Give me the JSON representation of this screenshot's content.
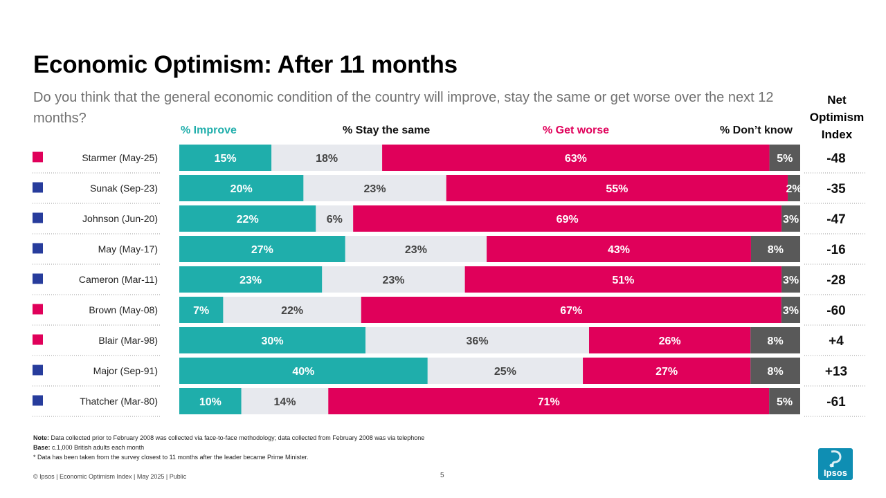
{
  "title": "Economic Optimism: After 11 months",
  "subtitle": "Do you think that the general economic condition of the country will improve, stay the same or get worse over the next 12 months?",
  "net_header": [
    "Net",
    "Optimism",
    "Index"
  ],
  "legend": {
    "improve": "% Improve",
    "same": "% Stay the same",
    "worse": "% Get worse",
    "dont_know": "% Don’t know"
  },
  "colors": {
    "improve": "#1FAEAB",
    "same": "#E7E9EE",
    "worse": "#E0005A",
    "dont_know": "#595959",
    "labour": "#E0005A",
    "conservative": "#273C9C"
  },
  "chart_data": {
    "type": "bar",
    "orientation": "horizontal",
    "stacked": true,
    "unit": "%",
    "categories": [
      "Starmer (May-25)",
      "Sunak (Sep-23)",
      "Johnson (Jun-20)",
      "May (May-17)",
      "Cameron (Mar-11)",
      "Brown (May-08)",
      "Blair (Mar-98)",
      "Major (Sep-91)",
      "Thatcher (Mar-80)"
    ],
    "party": [
      "labour",
      "conservative",
      "conservative",
      "conservative",
      "conservative",
      "labour",
      "labour",
      "conservative",
      "conservative"
    ],
    "series": [
      {
        "name": "% Improve",
        "key": "improve",
        "values": [
          15,
          20,
          22,
          27,
          23,
          7,
          30,
          40,
          10
        ]
      },
      {
        "name": "% Stay the same",
        "key": "same",
        "values": [
          18,
          23,
          6,
          23,
          23,
          22,
          36,
          25,
          14
        ]
      },
      {
        "name": "% Get worse",
        "key": "worse",
        "values": [
          63,
          55,
          69,
          43,
          51,
          67,
          26,
          27,
          71
        ]
      },
      {
        "name": "% Don’t know",
        "key": "dont_know",
        "values": [
          5,
          2,
          3,
          8,
          3,
          3,
          8,
          8,
          5
        ]
      }
    ],
    "net_optimism_index": [
      "-48",
      "-35",
      "-47",
      "-16",
      "-28",
      "-60",
      "+4",
      "+13",
      "-61"
    ],
    "xlim": [
      0,
      100
    ]
  },
  "notes": {
    "note_label": "Note:",
    "note_text": "Data collected prior to February 2008 was collected via face-to-face methodology; data collected from February 2008 was via telephone",
    "base_label": "Base:",
    "base_text": "c.1,000 British adults each month",
    "footnote": "* Data has been taken from the survey closest to 11 months after the leader became Prime Minister."
  },
  "footer": "© Ipsos | Economic Optimism Index | May 2025 | Public",
  "page_number": "5",
  "logo_text": "Ipsos"
}
